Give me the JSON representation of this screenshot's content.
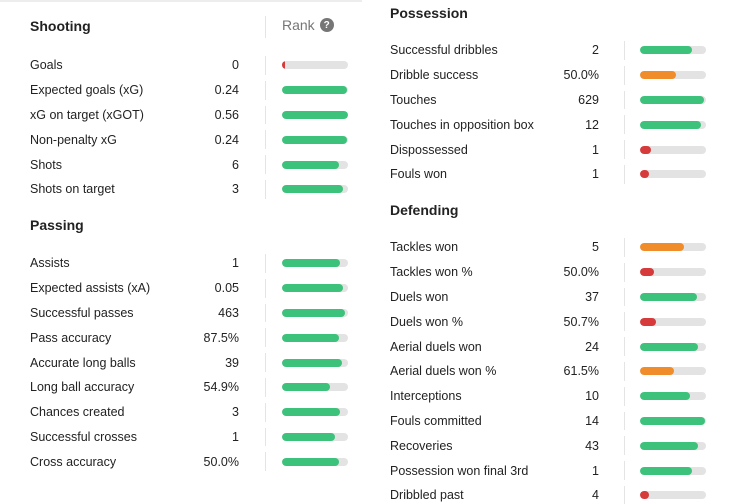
{
  "colors": {
    "high": "#3cc27a",
    "mid": "#f08c2a",
    "low": "#d63a3a",
    "track": "#e3e3e3"
  },
  "rank_header": {
    "label": "Rank",
    "help_icon": "question-circle-icon",
    "help_glyph": "?"
  },
  "left": {
    "sections": [
      {
        "title": "Shooting",
        "show_rank_header": true,
        "rows": [
          {
            "label": "Goals",
            "value": "0",
            "percentile": 0.02,
            "tier": "low"
          },
          {
            "label": "Expected goals (xG)",
            "value": "0.24",
            "percentile": 0.99,
            "tier": "high"
          },
          {
            "label": "xG on target (xGOT)",
            "value": "0.56",
            "percentile": 1.0,
            "tier": "high"
          },
          {
            "label": "Non-penalty xG",
            "value": "0.24",
            "percentile": 0.99,
            "tier": "high"
          },
          {
            "label": "Shots",
            "value": "6",
            "percentile": 0.87,
            "tier": "high"
          },
          {
            "label": "Shots on target",
            "value": "3",
            "percentile": 0.93,
            "tier": "high"
          }
        ]
      },
      {
        "title": "Passing",
        "show_rank_header": false,
        "rows": [
          {
            "label": "Assists",
            "value": "1",
            "percentile": 0.88,
            "tier": "high"
          },
          {
            "label": "Expected assists (xA)",
            "value": "0.05",
            "percentile": 0.93,
            "tier": "high"
          },
          {
            "label": "Successful passes",
            "value": "463",
            "percentile": 0.96,
            "tier": "high"
          },
          {
            "label": "Pass accuracy",
            "value": "87.5%",
            "percentile": 0.86,
            "tier": "high"
          },
          {
            "label": "Accurate long balls",
            "value": "39",
            "percentile": 0.91,
            "tier": "high"
          },
          {
            "label": "Long ball accuracy",
            "value": "54.9%",
            "percentile": 0.73,
            "tier": "high"
          },
          {
            "label": "Chances created",
            "value": "3",
            "percentile": 0.88,
            "tier": "high"
          },
          {
            "label": "Successful crosses",
            "value": "1",
            "percentile": 0.8,
            "tier": "high"
          },
          {
            "label": "Cross accuracy",
            "value": "50.0%",
            "percentile": 0.87,
            "tier": "high"
          }
        ]
      }
    ]
  },
  "right": {
    "sections": [
      {
        "title": "Possession",
        "rows": [
          {
            "label": "Successful dribbles",
            "value": "2",
            "percentile": 0.79,
            "tier": "high"
          },
          {
            "label": "Dribble success",
            "value": "50.0%",
            "percentile": 0.55,
            "tier": "mid"
          },
          {
            "label": "Touches",
            "value": "629",
            "percentile": 0.97,
            "tier": "high"
          },
          {
            "label": "Touches in opposition box",
            "value": "12",
            "percentile": 0.93,
            "tier": "high"
          },
          {
            "label": "Dispossessed",
            "value": "1",
            "percentile": 0.16,
            "tier": "low"
          },
          {
            "label": "Fouls won",
            "value": "1",
            "percentile": 0.14,
            "tier": "low"
          }
        ]
      },
      {
        "title": "Defending",
        "rows": [
          {
            "label": "Tackles won",
            "value": "5",
            "percentile": 0.67,
            "tier": "mid"
          },
          {
            "label": "Tackles won %",
            "value": "50.0%",
            "percentile": 0.21,
            "tier": "low"
          },
          {
            "label": "Duels won",
            "value": "37",
            "percentile": 0.87,
            "tier": "high"
          },
          {
            "label": "Duels won %",
            "value": "50.7%",
            "percentile": 0.24,
            "tier": "low"
          },
          {
            "label": "Aerial duels won",
            "value": "24",
            "percentile": 0.88,
            "tier": "high"
          },
          {
            "label": "Aerial duels won %",
            "value": "61.5%",
            "percentile": 0.52,
            "tier": "mid"
          },
          {
            "label": "Interceptions",
            "value": "10",
            "percentile": 0.76,
            "tier": "high"
          },
          {
            "label": "Fouls committed",
            "value": "14",
            "percentile": 0.99,
            "tier": "high"
          },
          {
            "label": "Recoveries",
            "value": "43",
            "percentile": 0.88,
            "tier": "high"
          },
          {
            "label": "Possession won final 3rd",
            "value": "1",
            "percentile": 0.79,
            "tier": "high"
          },
          {
            "label": "Dribbled past",
            "value": "4",
            "percentile": 0.14,
            "tier": "low"
          }
        ]
      }
    ]
  }
}
